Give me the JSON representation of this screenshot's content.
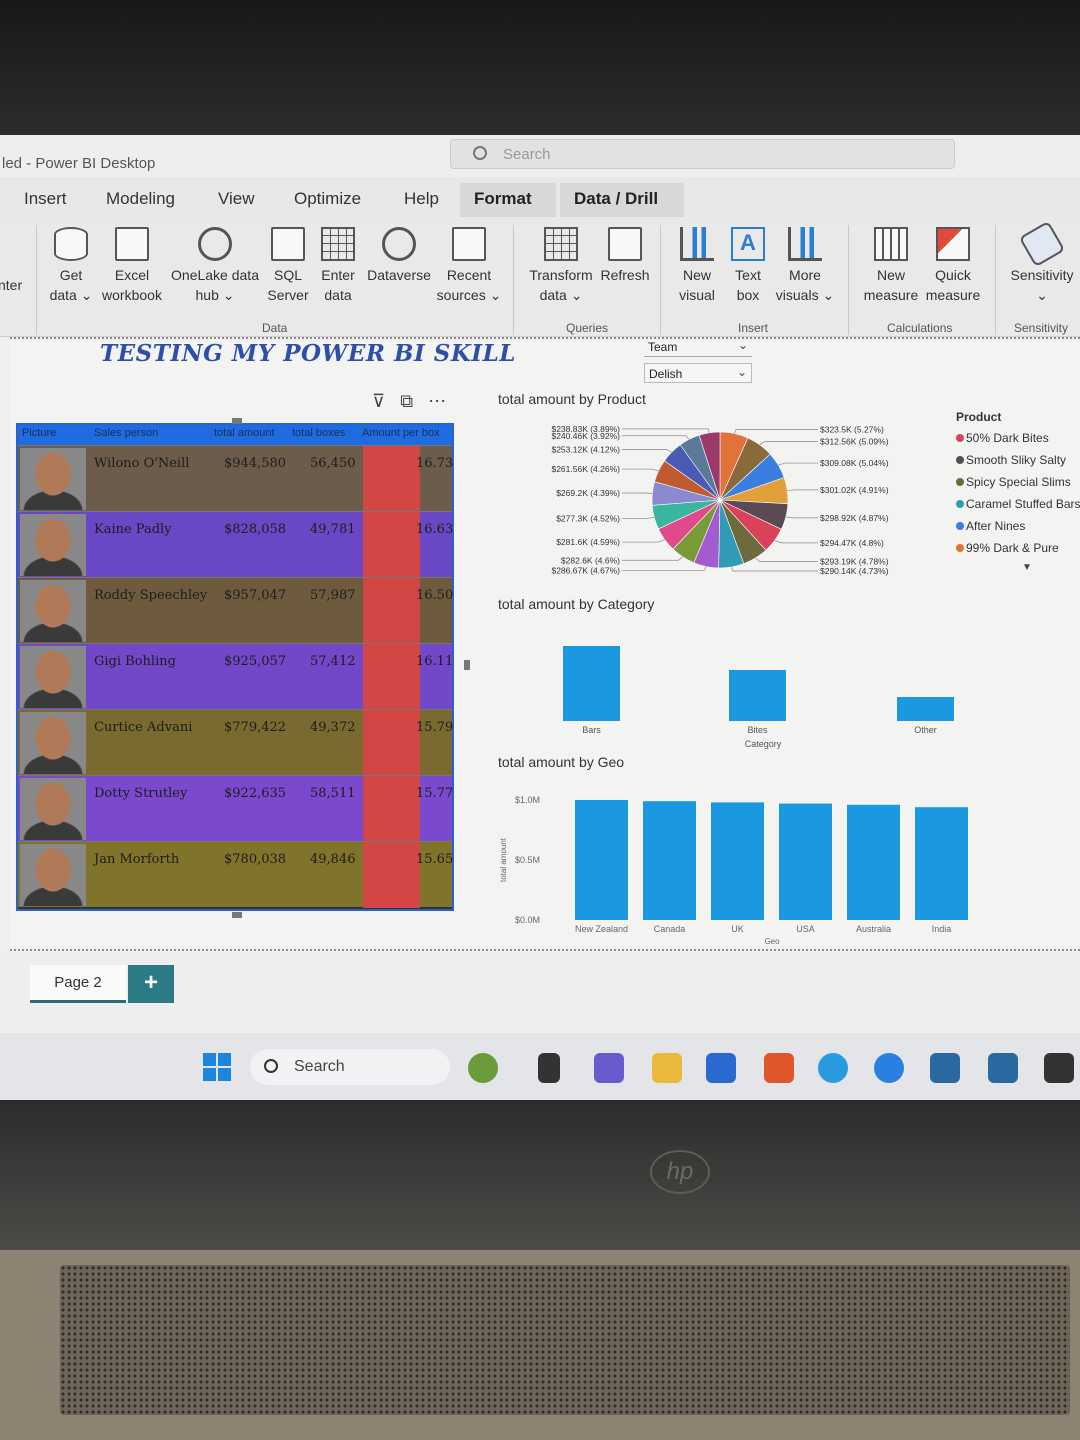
{
  "window": {
    "title": "led - Power BI Desktop",
    "search_placeholder": "Search"
  },
  "tabs": [
    "Insert",
    "Modeling",
    "View",
    "Optimize",
    "Help",
    "Format",
    "Data / Drill"
  ],
  "ribbon": {
    "partial_left_label": "nter",
    "buttons": [
      {
        "line1": "Get",
        "line2": "data ⌄",
        "icon": "database-icon"
      },
      {
        "line1": "Excel",
        "line2": "workbook",
        "icon": "excel-icon"
      },
      {
        "line1": "OneLake data",
        "line2": "hub ⌄",
        "icon": "onelake-icon"
      },
      {
        "line1": "SQL",
        "line2": "Server",
        "icon": "sql-server-icon"
      },
      {
        "line1": "Enter",
        "line2": "data",
        "icon": "table-icon"
      },
      {
        "line1": "Dataverse",
        "line2": "",
        "icon": "dataverse-icon"
      },
      {
        "line1": "Recent",
        "line2": "sources ⌄",
        "icon": "recent-sources-icon"
      },
      {
        "line1": "Transform",
        "line2": "data ⌄",
        "icon": "transform-icon"
      },
      {
        "line1": "Refresh",
        "line2": "",
        "icon": "refresh-icon"
      },
      {
        "line1": "New",
        "line2": "visual",
        "icon": "new-visual-icon"
      },
      {
        "line1": "Text",
        "line2": "box",
        "icon": "text-box-icon"
      },
      {
        "line1": "More",
        "line2": "visuals ⌄",
        "icon": "more-visuals-icon"
      },
      {
        "line1": "New",
        "line2": "measure",
        "icon": "new-measure-icon"
      },
      {
        "line1": "Quick",
        "line2": "measure",
        "icon": "quick-measure-icon"
      },
      {
        "line1": "Sensitivity",
        "line2": "⌄",
        "icon": "sensitivity-icon"
      }
    ],
    "groups": [
      "Data",
      "Queries",
      "Insert",
      "Calculations",
      "Sensitivity"
    ]
  },
  "report": {
    "title": "TESTING MY POWER BI SKILL",
    "slicers": [
      {
        "label": "Team"
      },
      {
        "label": "Delish"
      }
    ]
  },
  "table_visual": {
    "columns": [
      "Picture",
      "Sales person",
      "total amount",
      "total boxes",
      "Amount per box"
    ],
    "rows": [
      {
        "name": "Wilono O'Neill",
        "amount": "$944,580",
        "boxes": "56,450",
        "per_box": "16.73",
        "bg": "#6b5c4c"
      },
      {
        "name": "Kaine Padly",
        "amount": "$828,058",
        "boxes": "49,781",
        "per_box": "16.63",
        "bg": "#6a47c4"
      },
      {
        "name": "Roddy Speechley",
        "amount": "$957,047",
        "boxes": "57,987",
        "per_box": "16.50",
        "bg": "#6e5b3d"
      },
      {
        "name": "Gigi Bohling",
        "amount": "$925,057",
        "boxes": "57,412",
        "per_box": "16.11",
        "bg": "#7248c8"
      },
      {
        "name": "Curtice Advani",
        "amount": "$779,422",
        "boxes": "49,372",
        "per_box": "15.79",
        "bg": "#7a6a2f"
      },
      {
        "name": "Dotty Strutley",
        "amount": "$922,635",
        "boxes": "58,511",
        "per_box": "15.77",
        "bg": "#7a49cd"
      },
      {
        "name": "Jan Morforth",
        "amount": "$780,038",
        "boxes": "49,846",
        "per_box": "15.65",
        "bg": "#80732a"
      }
    ]
  },
  "pie_visual": {
    "title": "total amount by Product",
    "legend_title": "Product",
    "legend": [
      {
        "label": "50% Dark Bites",
        "color": "#d9425a"
      },
      {
        "label": "Smooth Sliky Salty",
        "color": "#5b4a52"
      },
      {
        "label": "Spicy Special Slims",
        "color": "#6d6a3e"
      },
      {
        "label": "Caramel Stuffed Bars",
        "color": "#2f9bb5"
      },
      {
        "label": "After Nines",
        "color": "#3a7fe0"
      },
      {
        "label": "99% Dark & Pure",
        "color": "#e0723a"
      }
    ]
  },
  "chart_data": [
    {
      "type": "pie",
      "title": "total amount by Product",
      "slices": [
        {
          "label": "$323.5K (5.27%)",
          "value": 323.5
        },
        {
          "label": "$312.56K (5.09%)",
          "value": 312.56
        },
        {
          "label": "$309.08K (5.04%)",
          "value": 309.08
        },
        {
          "label": "$301.02K (4.91%)",
          "value": 301.02
        },
        {
          "label": "$298.92K (4.87%)",
          "value": 298.92
        },
        {
          "label": "$294.47K (4.8%)",
          "value": 294.47
        },
        {
          "label": "$293.19K (4.78%)",
          "value": 293.19
        },
        {
          "label": "$290.14K (4.73%)",
          "value": 290.14
        },
        {
          "label": "$286.67K (4.67%)",
          "value": 286.67
        },
        {
          "label": "$282.6K (4.6%)",
          "value": 282.6
        },
        {
          "label": "$281.6K (4.59%)",
          "value": 281.6
        },
        {
          "label": "$277.3K (4.52%)",
          "value": 277.3
        },
        {
          "label": "$269.2K (4.39%)",
          "value": 269.2
        },
        {
          "label": "$261.56K (4.26%)",
          "value": 261.56
        },
        {
          "label": "$253.12K (4.12%)",
          "value": 253.12
        },
        {
          "label": "$240.46K (3.92%)",
          "value": 240.46
        },
        {
          "label": "$238.83K (3.89%)",
          "value": 238.83
        }
      ],
      "colors": [
        "#e0723a",
        "#8a6a3a",
        "#3a7fe0",
        "#e0a03a",
        "#5b4a52",
        "#d9425a",
        "#6d6a3e",
        "#2f9bb5",
        "#a35bd0",
        "#7a9a3a",
        "#e04a8a",
        "#3ab5a0",
        "#8a8ad0",
        "#c05a30",
        "#4a5ab5",
        "#5a7a9a",
        "#9a3a6a",
        "#6a9ae0"
      ]
    },
    {
      "type": "bar",
      "title": "total amount by Category",
      "categories": [
        "Bars",
        "Bites",
        "Other"
      ],
      "values": [
        1.0,
        0.68,
        0.32
      ],
      "xlabel": "Category"
    },
    {
      "type": "bar",
      "title": "total amount by Geo",
      "categories": [
        "New Zealand",
        "Canada",
        "UK",
        "USA",
        "Australia",
        "India"
      ],
      "values": [
        1.0,
        0.99,
        0.98,
        0.97,
        0.96,
        0.94
      ],
      "y_ticks": [
        "$1.0M",
        "$0.5M",
        "$0.0M"
      ],
      "ylim": [
        0,
        1.0
      ],
      "xlabel": "Geo",
      "ylabel": "total amount"
    }
  ],
  "page_tabs": {
    "current": "Page 2",
    "add": "+"
  },
  "taskbar": {
    "search": "Search"
  },
  "colors": {
    "accent": "#1e6ce0",
    "bar": "#1a98e0",
    "teal": "#2b7a85"
  }
}
